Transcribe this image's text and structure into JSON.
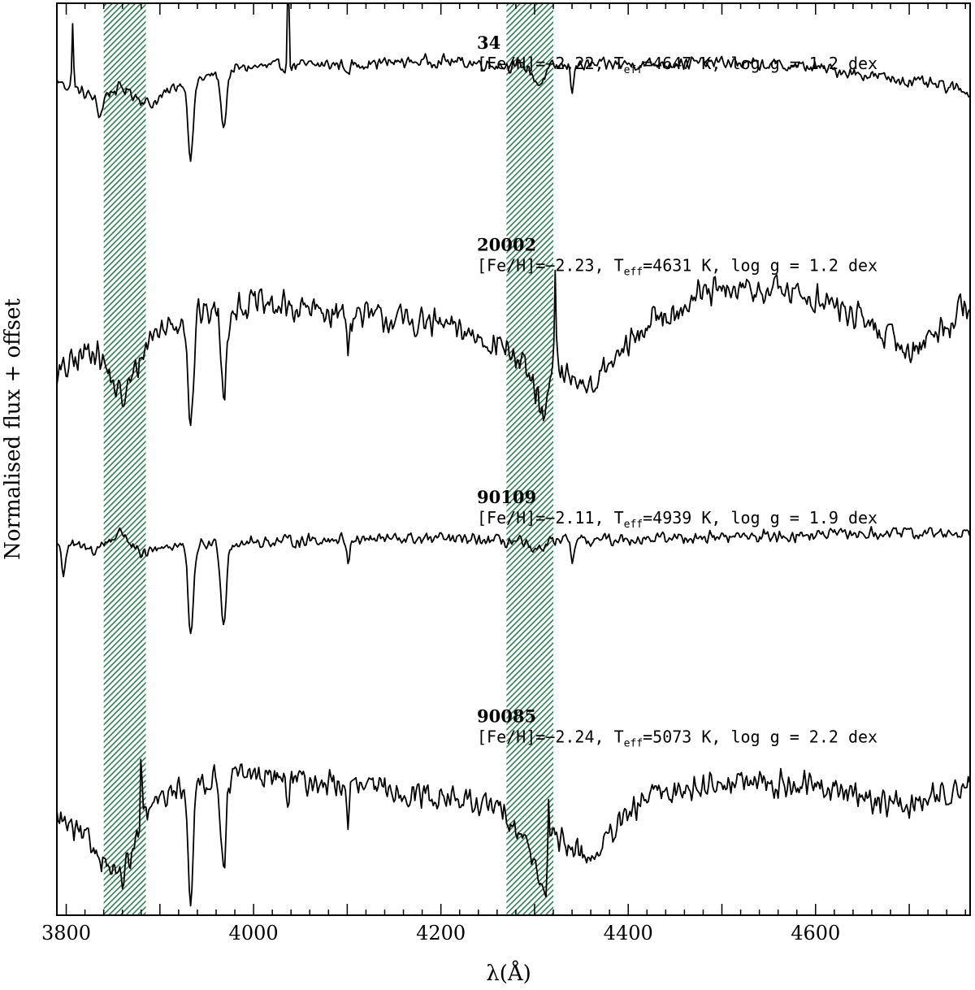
{
  "chart_data": {
    "type": "line",
    "xlabel": "λ(Å)",
    "ylabel": "Normalised flux + offset",
    "xlim": [
      3790,
      4765
    ],
    "x_ticks": [
      3800,
      4000,
      4200,
      4400,
      4600
    ],
    "x_minor_step": 20,
    "y_ticks_shown": false,
    "grid": false,
    "line_color": "#000000",
    "highlight_color": "#2e7d57",
    "highlight_bands": [
      {
        "x0": 3840,
        "x1": 3885
      },
      {
        "x0": 4270,
        "x1": 4320
      }
    ],
    "series": [
      {
        "id": "34",
        "params": {
          "feh": "[Fe/H]=−2.22, ",
          "t": "T",
          "t_sub": "eff",
          "rest": "=4647 K, log g = 1.2 dex"
        },
        "offset": 3.0,
        "scale": 0.45,
        "noise": 0.045,
        "envelope": [
          [
            3790,
            0.72
          ],
          [
            3830,
            0.62
          ],
          [
            3860,
            0.68
          ],
          [
            3890,
            0.58
          ],
          [
            3920,
            0.7
          ],
          [
            3990,
            0.8
          ],
          [
            4100,
            0.82
          ],
          [
            4200,
            0.84
          ],
          [
            4300,
            0.8
          ],
          [
            4400,
            0.82
          ],
          [
            4500,
            0.83
          ],
          [
            4600,
            0.8
          ],
          [
            4700,
            0.72
          ],
          [
            4765,
            0.66
          ]
        ],
        "lines": [
          {
            "x": 3933,
            "depth": 1.0,
            "width": 4
          },
          {
            "x": 3968,
            "depth": 0.72,
            "width": 4
          },
          {
            "x": 3836,
            "depth": 0.25,
            "width": 4
          },
          {
            "x": 4101,
            "depth": 0.2,
            "width": 2
          },
          {
            "x": 4340,
            "depth": 0.3,
            "width": 2
          },
          {
            "x": 4305,
            "depth": 0.22,
            "width": 8
          }
        ],
        "spikes": [
          {
            "x": 3807,
            "height": 0.4
          },
          {
            "x": 4037,
            "height": 0.55
          }
        ]
      },
      {
        "id": "20002",
        "params": {
          "feh": "[Fe/H]=−2.23, ",
          "t": "T",
          "t_sub": "eff",
          "rest": "=4631 K, log g = 1.2 dex"
        },
        "offset": 2.0,
        "scale": 0.55,
        "noise": 0.09,
        "envelope": [
          [
            3790,
            0.3
          ],
          [
            3830,
            0.45
          ],
          [
            3860,
            0.18
          ],
          [
            3890,
            0.5
          ],
          [
            3930,
            0.6
          ],
          [
            4000,
            0.65
          ],
          [
            4100,
            0.6
          ],
          [
            4200,
            0.55
          ],
          [
            4270,
            0.45
          ],
          [
            4300,
            0.25
          ],
          [
            4320,
            0.35
          ],
          [
            4360,
            0.25
          ],
          [
            4420,
            0.55
          ],
          [
            4480,
            0.7
          ],
          [
            4560,
            0.72
          ],
          [
            4600,
            0.68
          ],
          [
            4660,
            0.55
          ],
          [
            4700,
            0.42
          ],
          [
            4740,
            0.55
          ],
          [
            4765,
            0.68
          ]
        ],
        "lines": [
          {
            "x": 3933,
            "depth": 1.0,
            "width": 4
          },
          {
            "x": 3968,
            "depth": 0.75,
            "width": 4
          },
          {
            "x": 4101,
            "depth": 0.25,
            "width": 2
          },
          {
            "x": 4310,
            "depth": 0.4,
            "width": 6
          }
        ],
        "spikes": [
          {
            "x": 4322,
            "height": 0.5
          }
        ]
      },
      {
        "id": "90109",
        "params": {
          "feh": "[Fe/H]=−2.11, ",
          "t": "T",
          "t_sub": "eff",
          "rest": "=4939 K, log g = 1.9 dex"
        },
        "offset": 1.0,
        "scale": 0.5,
        "noise": 0.04,
        "envelope": [
          [
            3790,
            0.7
          ],
          [
            3830,
            0.66
          ],
          [
            3860,
            0.76
          ],
          [
            3880,
            0.62
          ],
          [
            3900,
            0.68
          ],
          [
            3990,
            0.7
          ],
          [
            4100,
            0.72
          ],
          [
            4200,
            0.72
          ],
          [
            4300,
            0.7
          ],
          [
            4400,
            0.72
          ],
          [
            4500,
            0.73
          ],
          [
            4600,
            0.74
          ],
          [
            4700,
            0.75
          ],
          [
            4765,
            0.75
          ]
        ],
        "lines": [
          {
            "x": 3933,
            "depth": 1.0,
            "width": 4
          },
          {
            "x": 3968,
            "depth": 0.85,
            "width": 4
          },
          {
            "x": 3797,
            "depth": 0.3,
            "width": 3
          },
          {
            "x": 4101,
            "depth": 0.25,
            "width": 2
          },
          {
            "x": 4340,
            "depth": 0.28,
            "width": 2
          },
          {
            "x": 4300,
            "depth": 0.12,
            "width": 8
          }
        ],
        "spikes": []
      },
      {
        "id": "90085",
        "params": {
          "feh": "[Fe/H]=−2.24, ",
          "t": "T",
          "t_sub": "eff",
          "rest": "=5073 K, log g = 2.2 dex"
        },
        "offset": 0.0,
        "scale": 0.55,
        "noise": 0.08,
        "envelope": [
          [
            3790,
            0.45
          ],
          [
            3830,
            0.3
          ],
          [
            3860,
            0.15
          ],
          [
            3890,
            0.5
          ],
          [
            3930,
            0.62
          ],
          [
            4000,
            0.65
          ],
          [
            4100,
            0.6
          ],
          [
            4200,
            0.55
          ],
          [
            4270,
            0.48
          ],
          [
            4300,
            0.25
          ],
          [
            4320,
            0.35
          ],
          [
            4360,
            0.25
          ],
          [
            4420,
            0.55
          ],
          [
            4500,
            0.62
          ],
          [
            4600,
            0.6
          ],
          [
            4700,
            0.5
          ],
          [
            4765,
            0.62
          ]
        ],
        "lines": [
          {
            "x": 3933,
            "depth": 1.0,
            "width": 4
          },
          {
            "x": 3968,
            "depth": 0.72,
            "width": 4
          },
          {
            "x": 4101,
            "depth": 0.3,
            "width": 2
          },
          {
            "x": 4037,
            "depth": 0.25,
            "width": 2
          },
          {
            "x": 4310,
            "depth": 0.4,
            "width": 6
          }
        ],
        "spikes": [
          {
            "x": 3880,
            "height": 0.4
          },
          {
            "x": 4315,
            "height": 0.3
          }
        ]
      }
    ]
  }
}
